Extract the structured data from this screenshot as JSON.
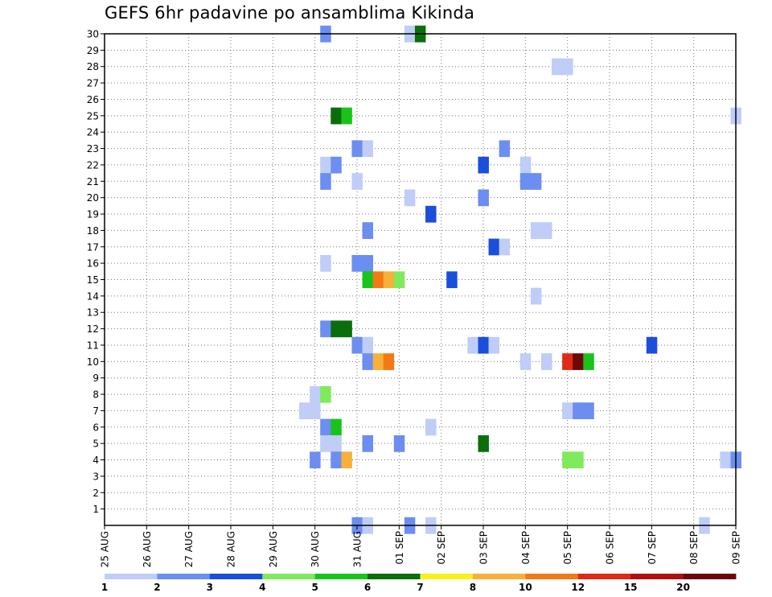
{
  "chart_data": {
    "type": "heatmap",
    "title": "GEFS 6hr padavine po ansamblima Kikinda",
    "x_ticks": [
      "25 AUG",
      "26 AUG",
      "27 AUG",
      "28 AUG",
      "29 AUG",
      "30 AUG",
      "31 AUG",
      "01 SEP",
      "02 SEP",
      "03 SEP",
      "04 SEP",
      "05 SEP",
      "06 SEP",
      "07 SEP",
      "08 SEP",
      "09 SEP"
    ],
    "y_ticks": [
      "1",
      "2",
      "3",
      "4",
      "5",
      "6",
      "7",
      "8",
      "9",
      "10",
      "11",
      "12",
      "13",
      "14",
      "15",
      "16",
      "17",
      "18",
      "19",
      "20",
      "21",
      "22",
      "23",
      "24",
      "25",
      "26",
      "27",
      "28",
      "29",
      "30"
    ],
    "x_range_days": [
      0,
      15
    ],
    "y_range": [
      0,
      30
    ],
    "grid": true,
    "colorbar": {
      "labels": [
        "1",
        "2",
        "3",
        "4",
        "5",
        "6",
        "7",
        "8",
        "10",
        "12",
        "15",
        "20"
      ],
      "colors": [
        "#bfcdf7",
        "#6b8ef0",
        "#1a4fdc",
        "#7eea5c",
        "#19c41a",
        "#0a6e0a",
        "#f6f21a",
        "#f7b03a",
        "#f27a14",
        "#df2a16",
        "#b01010",
        "#6e0808"
      ]
    },
    "cells_note": "x = days after 25 AUG 00Z, y = ensemble member, level = colorbar bin index",
    "cells": [
      [
        5.25,
        30,
        1
      ],
      [
        7.25,
        30,
        0
      ],
      [
        7.5,
        30,
        5
      ],
      [
        10.75,
        28,
        0
      ],
      [
        11.0,
        28,
        0
      ],
      [
        5.5,
        25,
        5
      ],
      [
        5.75,
        25,
        4
      ],
      [
        15.0,
        25,
        0
      ],
      [
        6.0,
        23,
        1
      ],
      [
        6.25,
        23,
        0
      ],
      [
        9.5,
        23,
        1
      ],
      [
        5.25,
        22,
        0
      ],
      [
        5.5,
        22,
        1
      ],
      [
        9.0,
        22,
        2
      ],
      [
        10.0,
        22,
        0
      ],
      [
        5.25,
        21,
        1
      ],
      [
        6.0,
        21,
        0
      ],
      [
        10.0,
        21,
        1
      ],
      [
        10.25,
        21,
        1
      ],
      [
        7.25,
        20,
        0
      ],
      [
        9.0,
        20,
        1
      ],
      [
        7.75,
        19,
        2
      ],
      [
        6.25,
        18,
        1
      ],
      [
        10.25,
        18,
        0
      ],
      [
        10.5,
        18,
        0
      ],
      [
        9.25,
        17,
        2
      ],
      [
        9.5,
        17,
        0
      ],
      [
        5.25,
        16,
        0
      ],
      [
        6.0,
        16,
        1
      ],
      [
        6.25,
        16,
        1
      ],
      [
        6.25,
        15,
        4
      ],
      [
        6.5,
        15,
        8
      ],
      [
        6.75,
        15,
        7
      ],
      [
        7.0,
        15,
        3
      ],
      [
        8.25,
        15,
        2
      ],
      [
        10.25,
        14,
        0
      ],
      [
        5.25,
        12,
        1
      ],
      [
        5.5,
        12,
        5
      ],
      [
        5.75,
        12,
        5
      ],
      [
        6.0,
        11,
        1
      ],
      [
        6.25,
        11,
        0
      ],
      [
        8.75,
        11,
        0
      ],
      [
        9.0,
        11,
        2
      ],
      [
        9.25,
        11,
        0
      ],
      [
        13.0,
        11,
        2
      ],
      [
        6.25,
        10,
        1
      ],
      [
        6.5,
        10,
        7
      ],
      [
        6.75,
        10,
        8
      ],
      [
        10.0,
        10,
        0
      ],
      [
        10.5,
        10,
        0
      ],
      [
        11.0,
        10,
        9
      ],
      [
        11.25,
        10,
        11
      ],
      [
        11.5,
        10,
        4
      ],
      [
        5.0,
        8,
        0
      ],
      [
        5.25,
        8,
        3
      ],
      [
        4.75,
        7,
        0
      ],
      [
        5.0,
        7,
        0
      ],
      [
        11.0,
        7,
        0
      ],
      [
        11.25,
        7,
        1
      ],
      [
        11.5,
        7,
        1
      ],
      [
        5.25,
        6,
        1
      ],
      [
        5.5,
        6,
        4
      ],
      [
        7.75,
        6,
        0
      ],
      [
        5.25,
        5,
        0
      ],
      [
        5.5,
        5,
        0
      ],
      [
        6.25,
        5,
        1
      ],
      [
        7.0,
        5,
        1
      ],
      [
        9.0,
        5,
        5
      ],
      [
        5.0,
        4,
        1
      ],
      [
        5.5,
        4,
        1
      ],
      [
        5.75,
        4,
        7
      ],
      [
        11.0,
        4,
        3
      ],
      [
        11.25,
        4,
        3
      ],
      [
        14.75,
        4,
        0
      ],
      [
        15.0,
        4,
        1
      ],
      [
        6.0,
        0,
        1
      ],
      [
        6.25,
        0,
        0
      ],
      [
        7.25,
        0,
        1
      ],
      [
        7.75,
        0,
        0
      ],
      [
        14.25,
        0,
        0
      ]
    ]
  }
}
